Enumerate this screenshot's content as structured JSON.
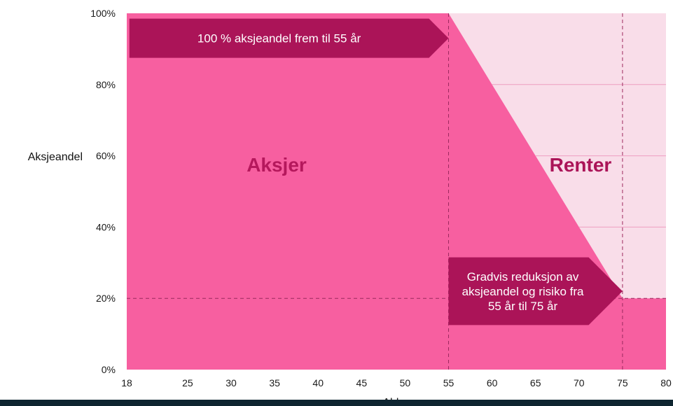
{
  "chart_data": {
    "type": "area",
    "xlabel": "Alder",
    "ylabel": "Aksjeandel",
    "xlim": [
      18,
      80
    ],
    "ylim": [
      0,
      100
    ],
    "x_ticks": [
      18,
      25,
      30,
      35,
      40,
      45,
      50,
      55,
      60,
      65,
      70,
      75,
      80
    ],
    "y_ticks": [
      {
        "value": 0,
        "label": "0%"
      },
      {
        "value": 20,
        "label": "20%"
      },
      {
        "value": 40,
        "label": "40%"
      },
      {
        "value": 60,
        "label": "60%"
      },
      {
        "value": 80,
        "label": "80%"
      },
      {
        "value": 100,
        "label": "100%"
      }
    ],
    "series": [
      {
        "name": "Aksjer",
        "color": "#f75fa0",
        "points": [
          [
            18,
            100
          ],
          [
            55,
            100
          ],
          [
            75,
            20
          ],
          [
            80,
            20
          ]
        ]
      },
      {
        "name": "Renter",
        "color": "#f9dde9",
        "points": [
          [
            18,
            0
          ],
          [
            55,
            0
          ],
          [
            75,
            80
          ],
          [
            80,
            80
          ]
        ]
      }
    ],
    "reference_lines": {
      "x": [
        55,
        75
      ],
      "y": [
        20
      ]
    },
    "annotations": [
      {
        "lines": [
          "100 % aksjeandel frem til 55 år"
        ],
        "x_start": 18.3,
        "x_tip": 55,
        "y_top": 98.5,
        "y_bottom": 87.5
      },
      {
        "lines": [
          "Gradvis reduksjon av",
          "aksjeandel og risiko fra",
          "55 år til 75 år"
        ],
        "x_start": 55,
        "x_tip": 75,
        "y_top": 31.5,
        "y_bottom": 12.5
      }
    ],
    "colors": {
      "stocks": "#f75fa0",
      "bonds": "#f9dde9",
      "callout": "#ab1458",
      "renter_label": "#ab1458",
      "aksjer_label": "#b5185c",
      "gridline": "#ee9ec0",
      "dashed": "#9c2a5e"
    }
  }
}
